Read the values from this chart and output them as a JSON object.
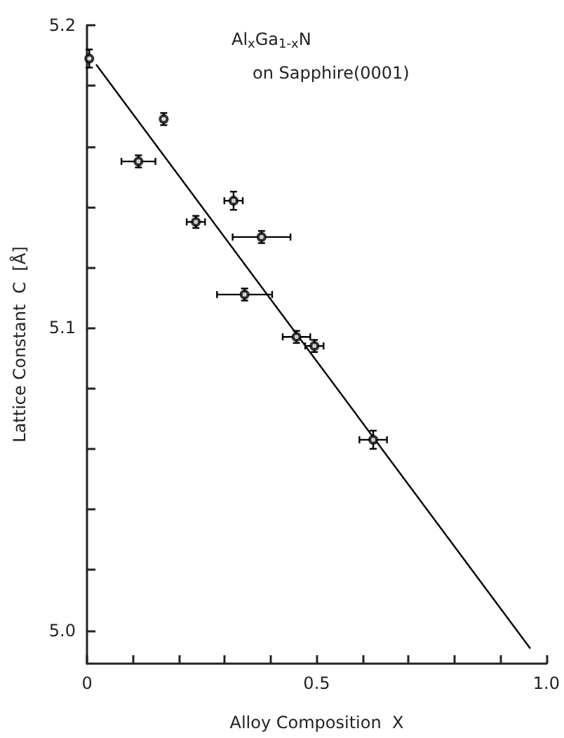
{
  "chart_data": {
    "type": "scatter",
    "xlabel": "Alloy Composition  X",
    "ylabel": "Lattice Constant  C  [Å]",
    "annotations": [
      "Al$_{x}$Ga$_{1-x}$N",
      "on Sapphire(0001)"
    ],
    "xlim": [
      0,
      1
    ],
    "ylim": [
      4.989,
      5.2
    ],
    "xticks": [
      0,
      {
        "value": 0.1,
        "label": null
      },
      {
        "value": 0.2,
        "label": null
      },
      {
        "value": 0.3,
        "label": null
      },
      {
        "value": 0.4,
        "label": null
      },
      0.5,
      {
        "value": 0.6,
        "label": null
      },
      {
        "value": 0.7,
        "label": null
      },
      {
        "value": 0.8,
        "label": null
      },
      {
        "value": 0.9,
        "label": null
      },
      {
        "value": 1,
        "label": "1.0"
      }
    ],
    "yticks": [
      {
        "value": 5.0,
        "label": "5.0"
      },
      {
        "value": 5.02,
        "label": null
      },
      {
        "value": 5.04,
        "label": null
      },
      {
        "value": 5.06,
        "label": null
      },
      {
        "value": 5.08,
        "label": null
      },
      5.1,
      {
        "value": 5.12,
        "label": null
      },
      {
        "value": 5.14,
        "label": null
      },
      {
        "value": 5.16,
        "label": null
      },
      {
        "value": 5.18,
        "label": null
      },
      5.2
    ],
    "grid": false,
    "marker": "circle",
    "series": [
      {
        "color": "#000000",
        "x": [
          0.005,
          0.112,
          0.167,
          0.237,
          0.319,
          0.38,
          0.343,
          0.456,
          0.495,
          0.623
        ],
        "values": [
          5.189,
          5.155,
          5.169,
          5.135,
          5.142,
          5.13,
          5.111,
          5.097,
          5.094,
          5.063
        ],
        "errors": [
          0.003,
          0.002,
          0.002,
          0.002,
          0.003,
          0.002,
          0.002,
          0.002,
          0.002,
          0.003
        ],
        "xerrors": [
          null,
          0.037,
          null,
          0.02,
          0.02,
          0.063,
          0.06,
          0.03,
          0.02,
          0.03
        ]
      },
      {
        "type": "line",
        "color": "#000000",
        "marker": "none",
        "x": [
          0.02,
          0.965
        ],
        "values": [
          5.187,
          4.994
        ]
      }
    ]
  }
}
